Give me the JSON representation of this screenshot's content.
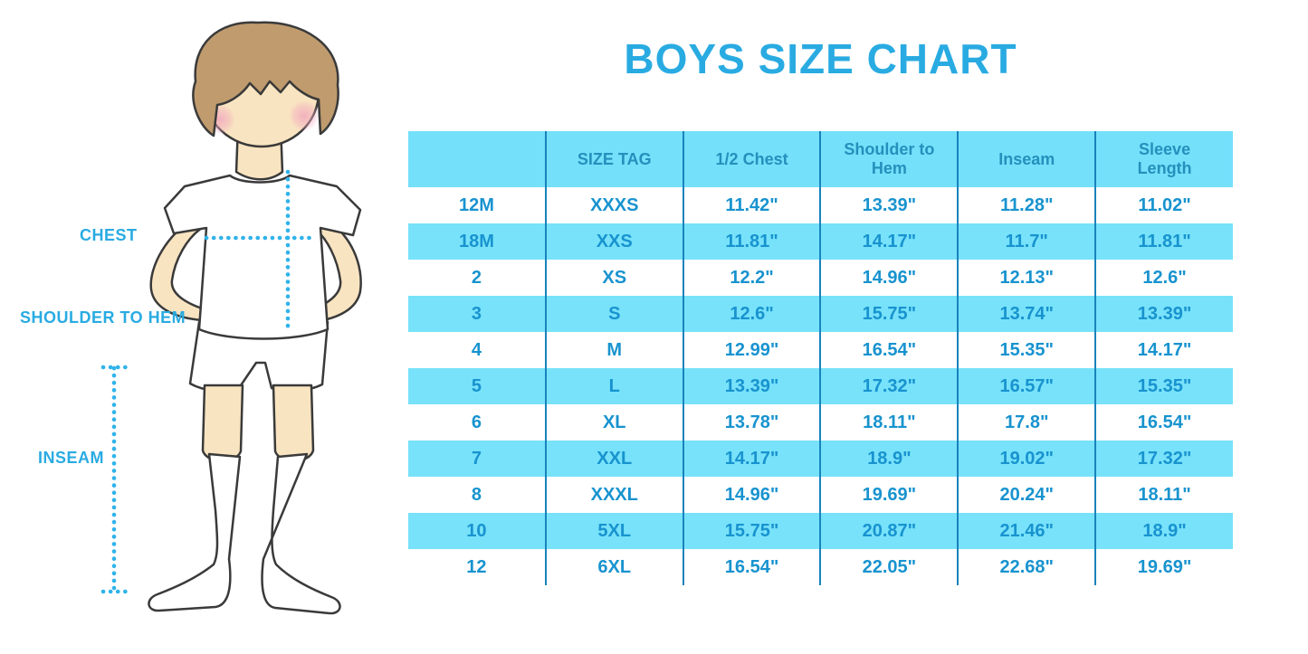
{
  "title": "BOYS SIZE CHART",
  "figure_labels": {
    "chest": "CHEST",
    "shoulder_to_hem": "SHOULDER TO HEM",
    "inseam": "INSEAM"
  },
  "colors": {
    "accent": "#29ABE2",
    "title": "#29ABE2",
    "stripe": "#77E2FA",
    "headerBg": "#74E0FA",
    "headerText": "#2490BC",
    "cellText": "#1893CF",
    "line": "#1883BC",
    "dots": "#2FB3EA",
    "skin": "#F9E4C1",
    "hair": "#BF9B6E",
    "outline": "#3A3A3A"
  },
  "chart_data": {
    "type": "table",
    "title": "BOYS SIZE CHART",
    "columns": [
      "",
      "SIZE TAG",
      "1/2 Chest",
      "Shoulder to Hem",
      "Inseam",
      "Sleeve Length"
    ],
    "rows": [
      [
        "12M",
        "XXXS",
        "11.42\"",
        "13.39\"",
        "11.28\"",
        "11.02\""
      ],
      [
        "18M",
        "XXS",
        "11.81\"",
        "14.17\"",
        "11.7\"",
        "11.81\""
      ],
      [
        "2",
        "XS",
        "12.2\"",
        "14.96\"",
        "12.13\"",
        "12.6\""
      ],
      [
        "3",
        "S",
        "12.6\"",
        "15.75\"",
        "13.74\"",
        "13.39\""
      ],
      [
        "4",
        "M",
        "12.99\"",
        "16.54\"",
        "15.35\"",
        "14.17\""
      ],
      [
        "5",
        "L",
        "13.39\"",
        "17.32\"",
        "16.57\"",
        "15.35\""
      ],
      [
        "6",
        "XL",
        "13.78\"",
        "18.11\"",
        "17.8\"",
        "16.54\""
      ],
      [
        "7",
        "XXL",
        "14.17\"",
        "18.9\"",
        "19.02\"",
        "17.32\""
      ],
      [
        "8",
        "XXXL",
        "14.96\"",
        "19.69\"",
        "20.24\"",
        "18.11\""
      ],
      [
        "10",
        "5XL",
        "15.75\"",
        "20.87\"",
        "21.46\"",
        "18.9\""
      ],
      [
        "12",
        "6XL",
        "16.54\"",
        "22.05\"",
        "22.68\"",
        "19.69\""
      ]
    ],
    "layout": {
      "striped_rows": true,
      "stripe_pattern": "every second data row highlighted, starting with row 2 (18M)",
      "column_separators": true,
      "outer_border": false
    }
  }
}
